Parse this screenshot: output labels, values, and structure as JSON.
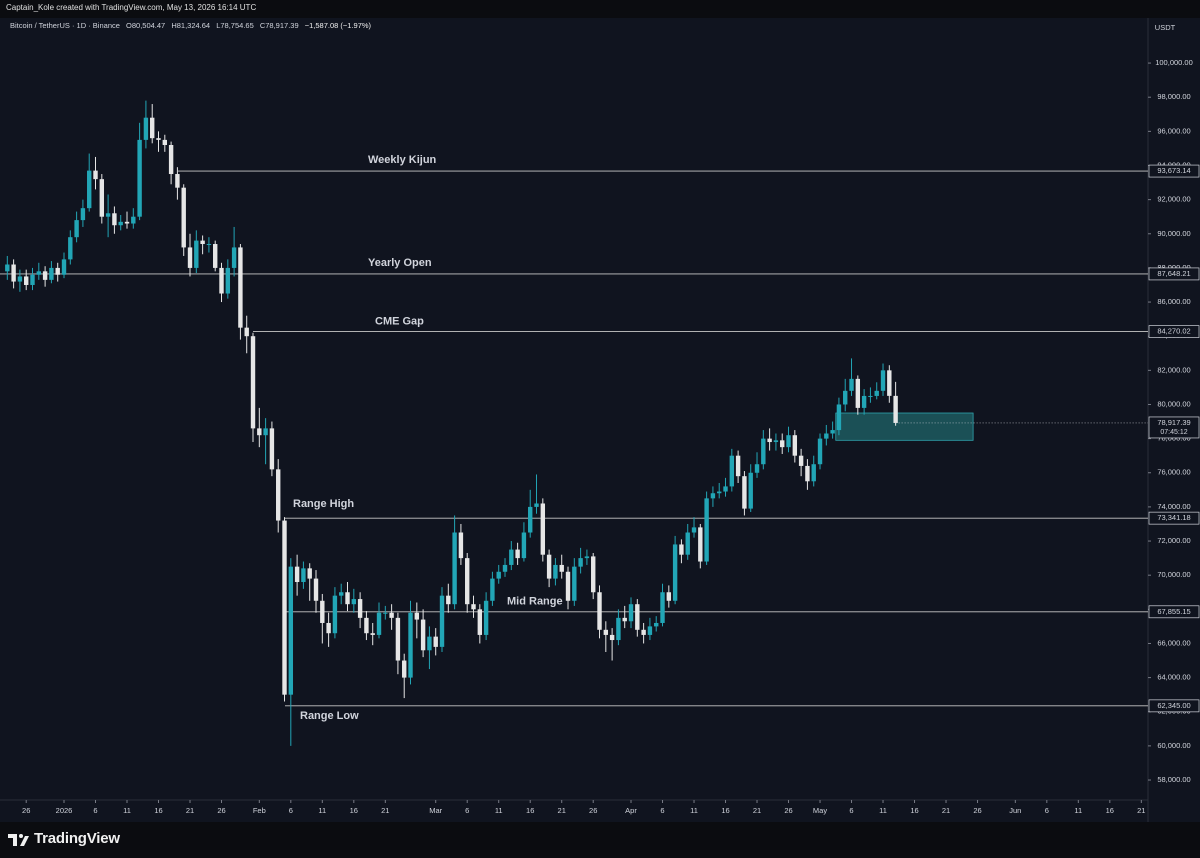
{
  "chart_data": {
    "type": "candlestick",
    "attribution": "Captain_Kole created with TradingView.com, May 13, 2026 16:14 UTC",
    "title": "Bitcoin / TetherUS · 1D · Binance",
    "legend_values": [
      "O80,504.47",
      "H81,324.64",
      "L78,754.65",
      "C78,917.39",
      "−1,587.08 (−1.97%)"
    ],
    "currency": "USDT",
    "brand": "TradingView",
    "up_color": "#22a6b6",
    "down_color": "#e6e6e6",
    "xlim": [
      -10.16,
      172.06
    ],
    "ylim": [
      56830,
      102640
    ],
    "xticks": [
      {
        "value": -6,
        "label": "26"
      },
      {
        "value": 0,
        "label": "2026"
      },
      {
        "value": 5,
        "label": "6"
      },
      {
        "value": 10,
        "label": "11"
      },
      {
        "value": 15,
        "label": "16"
      },
      {
        "value": 20,
        "label": "21"
      },
      {
        "value": 25,
        "label": "26"
      },
      {
        "value": 31,
        "label": "Feb"
      },
      {
        "value": 36,
        "label": "6"
      },
      {
        "value": 41,
        "label": "11"
      },
      {
        "value": 46,
        "label": "16"
      },
      {
        "value": 51,
        "label": "21"
      },
      {
        "value": 59,
        "label": "Mar"
      },
      {
        "value": 64,
        "label": "6"
      },
      {
        "value": 69,
        "label": "11"
      },
      {
        "value": 74,
        "label": "16"
      },
      {
        "value": 79,
        "label": "21"
      },
      {
        "value": 84,
        "label": "26"
      },
      {
        "value": 90,
        "label": "Apr"
      },
      {
        "value": 95,
        "label": "6"
      },
      {
        "value": 100,
        "label": "11"
      },
      {
        "value": 105,
        "label": "16"
      },
      {
        "value": 110,
        "label": "21"
      },
      {
        "value": 115,
        "label": "26"
      },
      {
        "value": 120,
        "label": "May"
      },
      {
        "value": 125,
        "label": "6"
      },
      {
        "value": 130,
        "label": "11"
      },
      {
        "value": 135,
        "label": "16"
      },
      {
        "value": 140,
        "label": "21"
      },
      {
        "value": 145,
        "label": "26"
      },
      {
        "value": 151,
        "label": "Jun"
      },
      {
        "value": 156,
        "label": "6"
      },
      {
        "value": 161,
        "label": "11"
      },
      {
        "value": 166,
        "label": "16"
      },
      {
        "value": 171,
        "label": "21"
      }
    ],
    "yticks": [
      {
        "value": 58000,
        "label": "58,000.00"
      },
      {
        "value": 60000,
        "label": "60,000.00"
      },
      {
        "value": 62000,
        "label": "62,000.00"
      },
      {
        "value": 64000,
        "label": "64,000.00"
      },
      {
        "value": 66000,
        "label": "66,000.00"
      },
      {
        "value": 68000,
        "label": "68,000.00"
      },
      {
        "value": 70000,
        "label": "70,000.00"
      },
      {
        "value": 72000,
        "label": "72,000.00"
      },
      {
        "value": 74000,
        "label": "74,000.00"
      },
      {
        "value": 76000,
        "label": "76,000.00"
      },
      {
        "value": 78000,
        "label": "78,000.00"
      },
      {
        "value": 80000,
        "label": "80,000.00"
      },
      {
        "value": 82000,
        "label": "82,000.00"
      },
      {
        "value": 84000,
        "label": "84,000.00"
      },
      {
        "value": 86000,
        "label": "86,000.00"
      },
      {
        "value": 88000,
        "label": "88,000.00"
      },
      {
        "value": 90000,
        "label": "90,000.00"
      },
      {
        "value": 92000,
        "label": "92,000.00"
      },
      {
        "value": 94000,
        "label": "94,000.00"
      },
      {
        "value": 96000,
        "label": "96,000.00"
      },
      {
        "value": 98000,
        "label": "98,000.00"
      },
      {
        "value": 100000,
        "label": "100,000.00"
      }
    ],
    "levels": [
      {
        "name": "Weekly Kijun",
        "value": 93673.14,
        "label": "93,673.14"
      },
      {
        "name": "Yearly Open",
        "value": 87648.21,
        "label": "87,648.21"
      },
      {
        "name": "CME Gap",
        "value": 84270.02,
        "label": "84,270.02"
      },
      {
        "name": "Range High",
        "value": 73341.18,
        "label": "73,341.18"
      },
      {
        "name": "Mid Range",
        "value": 67855.15,
        "label": "67,855.15"
      },
      {
        "name": "Range Low",
        "value": 62345.0,
        "label": "62,345.00"
      }
    ],
    "price_tag": {
      "value": 78917.39,
      "label": "78,917.39",
      "countdown": "07:45:12"
    },
    "zone": {
      "x": [
        122.5,
        144.3
      ],
      "y": [
        77900,
        79500
      ],
      "color": "#1d5a60"
    },
    "x": [
      -9,
      -8,
      -7,
      -6,
      -5,
      -4,
      -3,
      -2,
      -1,
      0,
      1,
      2,
      3,
      4,
      5,
      6,
      7,
      8,
      9,
      10,
      11,
      12,
      13,
      14,
      15,
      16,
      17,
      18,
      19,
      20,
      21,
      22,
      23,
      24,
      25,
      26,
      27,
      28,
      29,
      30,
      31,
      32,
      33,
      34,
      35,
      36,
      37,
      38,
      39,
      40,
      41,
      42,
      43,
      44,
      45,
      46,
      47,
      48,
      49,
      50,
      51,
      52,
      53,
      54,
      55,
      56,
      57,
      58,
      59,
      60,
      61,
      62,
      63,
      64,
      65,
      66,
      67,
      68,
      69,
      70,
      71,
      72,
      73,
      74,
      75,
      76,
      77,
      78,
      79,
      80,
      81,
      82,
      83,
      84,
      85,
      86,
      87,
      88,
      89,
      90,
      91,
      92,
      93,
      94,
      95,
      96,
      97,
      98,
      99,
      100,
      101,
      102,
      103,
      104,
      105,
      106,
      107,
      108,
      109,
      110,
      111,
      112,
      113,
      114,
      115,
      116,
      117,
      118,
      119,
      120,
      121,
      122,
      123,
      124,
      125,
      126,
      127,
      128,
      129,
      130,
      131,
      132
    ],
    "ohlc": [
      [
        87800,
        88700,
        87300,
        88200
      ],
      [
        88200,
        88500,
        86800,
        87200
      ],
      [
        87200,
        87900,
        86600,
        87500
      ],
      [
        87500,
        87900,
        86700,
        87000
      ],
      [
        87000,
        88000,
        86700,
        87600
      ],
      [
        87600,
        88300,
        87300,
        87800
      ],
      [
        87800,
        88100,
        86900,
        87300
      ],
      [
        87300,
        88400,
        87100,
        88000
      ],
      [
        88000,
        88300,
        87200,
        87600
      ],
      [
        87600,
        88900,
        87400,
        88500
      ],
      [
        88500,
        90200,
        88200,
        89800
      ],
      [
        89800,
        91300,
        89500,
        90800
      ],
      [
        90800,
        92000,
        90400,
        91500
      ],
      [
        91500,
        94700,
        91300,
        93700
      ],
      [
        93700,
        94500,
        92600,
        93200
      ],
      [
        93200,
        93500,
        90600,
        91000
      ],
      [
        91000,
        92300,
        89800,
        91200
      ],
      [
        91200,
        91600,
        90000,
        90500
      ],
      [
        90500,
        91100,
        90200,
        90700
      ],
      [
        90700,
        91300,
        90300,
        90600
      ],
      [
        90600,
        91500,
        90300,
        91000
      ],
      [
        91000,
        96500,
        90800,
        95500
      ],
      [
        95500,
        97800,
        95000,
        96800
      ],
      [
        96800,
        97600,
        95300,
        95600
      ],
      [
        95600,
        96000,
        94800,
        95500
      ],
      [
        95500,
        95800,
        94800,
        95200
      ],
      [
        95200,
        95400,
        92900,
        93500
      ],
      [
        93500,
        93900,
        92000,
        92700
      ],
      [
        92700,
        92900,
        88700,
        89200
      ],
      [
        89200,
        90000,
        87500,
        88000
      ],
      [
        88000,
        90200,
        87700,
        89600
      ],
      [
        89600,
        89900,
        88800,
        89400
      ],
      [
        89400,
        89800,
        88900,
        89400
      ],
      [
        89400,
        89600,
        87800,
        88000
      ],
      [
        88000,
        88300,
        86000,
        86500
      ],
      [
        86500,
        88500,
        86200,
        88000
      ],
      [
        88000,
        90400,
        87500,
        89200
      ],
      [
        89200,
        89400,
        83800,
        84500
      ],
      [
        84500,
        85200,
        83000,
        84000
      ],
      [
        84000,
        84200,
        77800,
        78600
      ],
      [
        78600,
        79800,
        77500,
        78200
      ],
      [
        78200,
        79200,
        76500,
        78600
      ],
      [
        78600,
        79000,
        75800,
        76200
      ],
      [
        76200,
        76800,
        72500,
        73200
      ],
      [
        73200,
        73400,
        62600,
        63000
      ],
      [
        63000,
        71000,
        60000,
        70500
      ],
      [
        70500,
        71200,
        68800,
        69600
      ],
      [
        69600,
        70800,
        69200,
        70400
      ],
      [
        70400,
        70700,
        68500,
        69800
      ],
      [
        69800,
        70300,
        67800,
        68500
      ],
      [
        68500,
        68900,
        66000,
        67200
      ],
      [
        67200,
        67800,
        65800,
        66600
      ],
      [
        66600,
        69300,
        66300,
        68800
      ],
      [
        68800,
        69500,
        68300,
        69000
      ],
      [
        69000,
        69600,
        67900,
        68300
      ],
      [
        68300,
        69200,
        67800,
        68600
      ],
      [
        68600,
        69000,
        66900,
        67500
      ],
      [
        67500,
        67900,
        66200,
        66600
      ],
      [
        66600,
        67200,
        65900,
        66500
      ],
      [
        66500,
        68400,
        66300,
        67800
      ],
      [
        67800,
        68200,
        67400,
        67800
      ],
      [
        67800,
        68300,
        66800,
        67500
      ],
      [
        67500,
        67800,
        64200,
        65000
      ],
      [
        65000,
        65400,
        62800,
        64000
      ],
      [
        64000,
        68500,
        63600,
        67800
      ],
      [
        67800,
        68400,
        66300,
        67400
      ],
      [
        67400,
        68000,
        65200,
        65600
      ],
      [
        65600,
        67000,
        64500,
        66400
      ],
      [
        66400,
        66900,
        65300,
        65800
      ],
      [
        65800,
        69300,
        65500,
        68800
      ],
      [
        68800,
        69500,
        67800,
        68300
      ],
      [
        68300,
        73500,
        68000,
        72500
      ],
      [
        72500,
        73000,
        70600,
        71000
      ],
      [
        71000,
        71300,
        67800,
        68300
      ],
      [
        68300,
        68800,
        67500,
        68000
      ],
      [
        68000,
        68300,
        66000,
        66500
      ],
      [
        66500,
        69000,
        66200,
        68500
      ],
      [
        68500,
        70200,
        68200,
        69800
      ],
      [
        69800,
        70600,
        69500,
        70200
      ],
      [
        70200,
        71000,
        69900,
        70600
      ],
      [
        70600,
        72000,
        70300,
        71500
      ],
      [
        71500,
        71900,
        70600,
        71000
      ],
      [
        71000,
        73100,
        70800,
        72500
      ],
      [
        72500,
        75000,
        72200,
        74000
      ],
      [
        74000,
        75900,
        73600,
        74200
      ],
      [
        74200,
        74500,
        70800,
        71200
      ],
      [
        71200,
        71500,
        69300,
        69800
      ],
      [
        69800,
        71000,
        69400,
        70600
      ],
      [
        70600,
        71200,
        69800,
        70200
      ],
      [
        70200,
        70500,
        68000,
        68500
      ],
      [
        68500,
        71000,
        68200,
        70500
      ],
      [
        70500,
        71600,
        70100,
        71000
      ],
      [
        71000,
        71500,
        70600,
        71100
      ],
      [
        71100,
        71300,
        68600,
        69000
      ],
      [
        69000,
        69400,
        66300,
        66800
      ],
      [
        66800,
        67300,
        65500,
        66500
      ],
      [
        66500,
        66900,
        65000,
        66200
      ],
      [
        66200,
        68000,
        65900,
        67500
      ],
      [
        67500,
        68200,
        66900,
        67300
      ],
      [
        67300,
        68700,
        66900,
        68300
      ],
      [
        68300,
        68600,
        66400,
        66800
      ],
      [
        66800,
        67200,
        66000,
        66500
      ],
      [
        66500,
        67500,
        66200,
        67000
      ],
      [
        67000,
        67600,
        66700,
        67200
      ],
      [
        67200,
        69500,
        67000,
        69000
      ],
      [
        69000,
        69400,
        68100,
        68500
      ],
      [
        68500,
        72300,
        68300,
        71800
      ],
      [
        71800,
        72100,
        70700,
        71200
      ],
      [
        71200,
        73000,
        70900,
        72500
      ],
      [
        72500,
        73400,
        72200,
        72800
      ],
      [
        72800,
        73000,
        70400,
        70800
      ],
      [
        70800,
        74900,
        70600,
        74500
      ],
      [
        74500,
        75200,
        74000,
        74800
      ],
      [
        74800,
        75400,
        74500,
        74900
      ],
      [
        74900,
        75700,
        74600,
        75200
      ],
      [
        75200,
        77400,
        74900,
        77000
      ],
      [
        77000,
        77300,
        75400,
        75800
      ],
      [
        75800,
        76100,
        73500,
        73900
      ],
      [
        73900,
        76500,
        73700,
        76000
      ],
      [
        76000,
        77200,
        75700,
        76500
      ],
      [
        76500,
        78500,
        76200,
        78000
      ],
      [
        78000,
        78600,
        77300,
        77800
      ],
      [
        77800,
        78300,
        77300,
        77900
      ],
      [
        77900,
        78300,
        77100,
        77500
      ],
      [
        77500,
        78700,
        77200,
        78200
      ],
      [
        78200,
        78500,
        76600,
        77000
      ],
      [
        77000,
        77400,
        75800,
        76400
      ],
      [
        76400,
        76800,
        75000,
        75500
      ],
      [
        75500,
        77000,
        75200,
        76500
      ],
      [
        76500,
        78300,
        76200,
        78000
      ],
      [
        78000,
        78800,
        77600,
        78300
      ],
      [
        78300,
        79000,
        78000,
        78500
      ],
      [
        78500,
        80400,
        78200,
        80000
      ],
      [
        80000,
        81500,
        79600,
        80800
      ],
      [
        80800,
        82700,
        80500,
        81500
      ],
      [
        81500,
        81700,
        79400,
        79800
      ],
      [
        79800,
        80900,
        79400,
        80500
      ],
      [
        80500,
        81000,
        80100,
        80500
      ],
      [
        80500,
        81300,
        80300,
        80800
      ],
      [
        80800,
        82400,
        80500,
        82000
      ],
      [
        82000,
        82300,
        80100,
        80504.47
      ],
      [
        80504.47,
        81324.64,
        78754.65,
        78917.39
      ]
    ]
  }
}
